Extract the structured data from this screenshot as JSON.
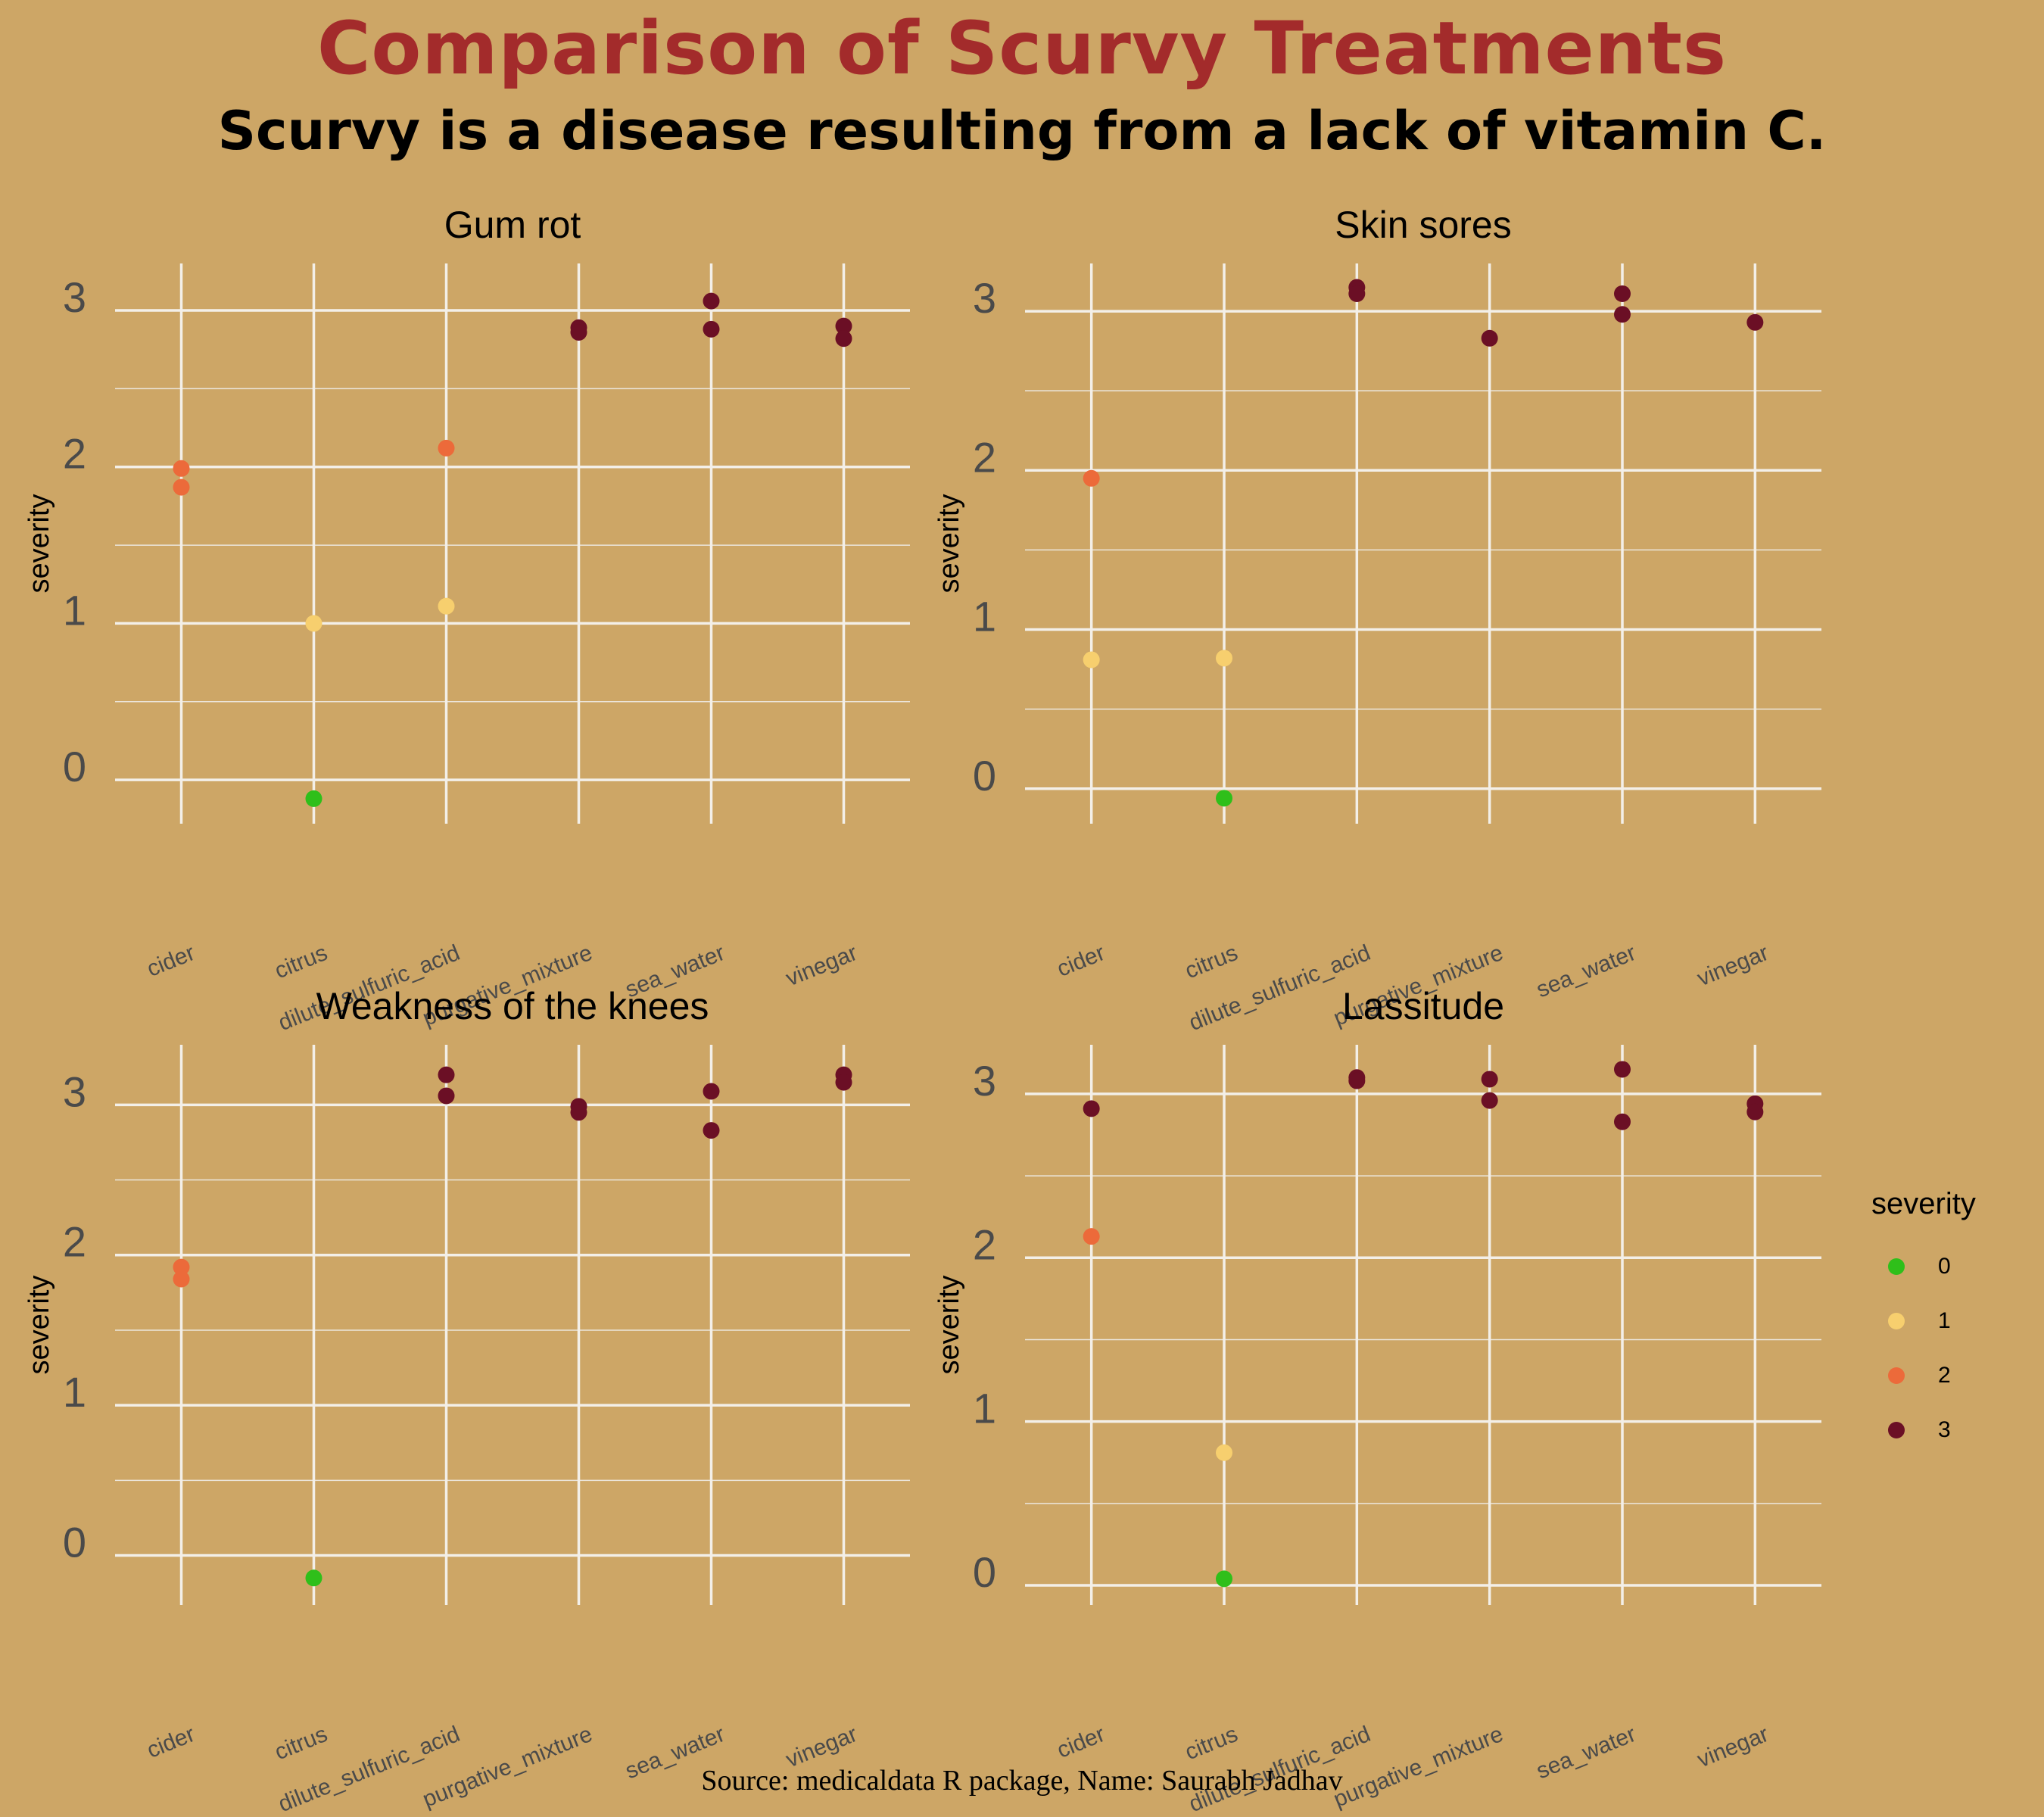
{
  "title": "Comparison of Scurvy Treatments",
  "subtitle": "Scurvy is a disease resulting from a lack of vitamin C.",
  "caption": "Source: medicaldata R package, Name: Saurabh Jadhav",
  "legend": {
    "title": "severity",
    "items": [
      {
        "label": "0",
        "color": "#2fbf1a"
      },
      {
        "label": "1",
        "color": "#f7cf6e"
      },
      {
        "label": "2",
        "color": "#ec6a3a"
      },
      {
        "label": "3",
        "color": "#6b0f25"
      }
    ]
  },
  "chart_data": [
    {
      "type": "scatter",
      "title": "Gum rot",
      "ylabel": "severity",
      "xlabel": "",
      "categories": [
        "cider",
        "citrus",
        "dilute_sulfuric_acid",
        "purgative_mixture",
        "sea_water",
        "vinegar"
      ],
      "yticks": [
        "0",
        "1",
        "2",
        "3"
      ],
      "ylim": [
        -0.28,
        3.3
      ],
      "points": [
        {
          "x": "cider",
          "y": 1.99,
          "severity": 2
        },
        {
          "x": "cider",
          "y": 1.87,
          "severity": 2
        },
        {
          "x": "citrus",
          "y": 1.0,
          "severity": 1
        },
        {
          "x": "citrus",
          "y": -0.12,
          "severity": 0
        },
        {
          "x": "dilute_sulfuric_acid",
          "y": 2.12,
          "severity": 2
        },
        {
          "x": "dilute_sulfuric_acid",
          "y": 1.11,
          "severity": 1
        },
        {
          "x": "purgative_mixture",
          "y": 2.89,
          "severity": 3
        },
        {
          "x": "purgative_mixture",
          "y": 2.86,
          "severity": 3
        },
        {
          "x": "sea_water",
          "y": 3.06,
          "severity": 3
        },
        {
          "x": "sea_water",
          "y": 2.88,
          "severity": 3
        },
        {
          "x": "vinegar",
          "y": 2.9,
          "severity": 3
        },
        {
          "x": "vinegar",
          "y": 2.82,
          "severity": 3
        }
      ]
    },
    {
      "type": "scatter",
      "title": "Skin sores",
      "ylabel": "severity",
      "xlabel": "",
      "categories": [
        "cider",
        "citrus",
        "dilute_sulfuric_acid",
        "purgative_mixture",
        "sea_water",
        "vinegar"
      ],
      "yticks": [
        "0",
        "1",
        "2",
        "3"
      ],
      "ylim": [
        -0.22,
        3.3
      ],
      "points": [
        {
          "x": "cider",
          "y": 1.95,
          "severity": 2
        },
        {
          "x": "cider",
          "y": 0.81,
          "severity": 1
        },
        {
          "x": "citrus",
          "y": 0.82,
          "severity": 1
        },
        {
          "x": "citrus",
          "y": -0.06,
          "severity": 0
        },
        {
          "x": "dilute_sulfuric_acid",
          "y": 3.15,
          "severity": 3
        },
        {
          "x": "dilute_sulfuric_acid",
          "y": 3.11,
          "severity": 3
        },
        {
          "x": "purgative_mixture",
          "y": 2.83,
          "severity": 3
        },
        {
          "x": "sea_water",
          "y": 3.11,
          "severity": 3
        },
        {
          "x": "sea_water",
          "y": 2.98,
          "severity": 3
        },
        {
          "x": "vinegar",
          "y": 2.93,
          "severity": 3
        }
      ]
    },
    {
      "type": "scatter",
      "title": "Weakness of the knees",
      "ylabel": "severity",
      "xlabel": "",
      "categories": [
        "cider",
        "citrus",
        "dilute_sulfuric_acid",
        "purgative_mixture",
        "sea_water",
        "vinegar"
      ],
      "yticks": [
        "0",
        "1",
        "2",
        "3"
      ],
      "ylim": [
        -0.33,
        3.4
      ],
      "points": [
        {
          "x": "cider",
          "y": 1.92,
          "severity": 2
        },
        {
          "x": "cider",
          "y": 1.84,
          "severity": 2
        },
        {
          "x": "citrus",
          "y": -0.15,
          "severity": 0
        },
        {
          "x": "dilute_sulfuric_acid",
          "y": 3.2,
          "severity": 3
        },
        {
          "x": "dilute_sulfuric_acid",
          "y": 3.06,
          "severity": 3
        },
        {
          "x": "purgative_mixture",
          "y": 2.99,
          "severity": 3
        },
        {
          "x": "purgative_mixture",
          "y": 2.95,
          "severity": 3
        },
        {
          "x": "sea_water",
          "y": 3.09,
          "severity": 3
        },
        {
          "x": "sea_water",
          "y": 2.83,
          "severity": 3
        },
        {
          "x": "vinegar",
          "y": 3.2,
          "severity": 3
        },
        {
          "x": "vinegar",
          "y": 3.15,
          "severity": 3
        }
      ]
    },
    {
      "type": "scatter",
      "title": "Lassitude",
      "ylabel": "severity",
      "xlabel": "",
      "categories": [
        "cider",
        "citrus",
        "dilute_sulfuric_acid",
        "purgative_mixture",
        "sea_water",
        "vinegar"
      ],
      "yticks": [
        "0",
        "1",
        "2",
        "3"
      ],
      "ylim": [
        -0.12,
        3.3
      ],
      "points": [
        {
          "x": "cider",
          "y": 2.91,
          "severity": 3
        },
        {
          "x": "cider",
          "y": 2.13,
          "severity": 2
        },
        {
          "x": "citrus",
          "y": 0.81,
          "severity": 1
        },
        {
          "x": "citrus",
          "y": 0.04,
          "severity": 0
        },
        {
          "x": "dilute_sulfuric_acid",
          "y": 3.1,
          "severity": 3
        },
        {
          "x": "dilute_sulfuric_acid",
          "y": 3.08,
          "severity": 3
        },
        {
          "x": "purgative_mixture",
          "y": 3.09,
          "severity": 3
        },
        {
          "x": "purgative_mixture",
          "y": 2.96,
          "severity": 3
        },
        {
          "x": "sea_water",
          "y": 3.15,
          "severity": 3
        },
        {
          "x": "sea_water",
          "y": 2.83,
          "severity": 3
        },
        {
          "x": "vinegar",
          "y": 2.94,
          "severity": 3
        },
        {
          "x": "vinegar",
          "y": 2.89,
          "severity": 3
        }
      ]
    }
  ]
}
